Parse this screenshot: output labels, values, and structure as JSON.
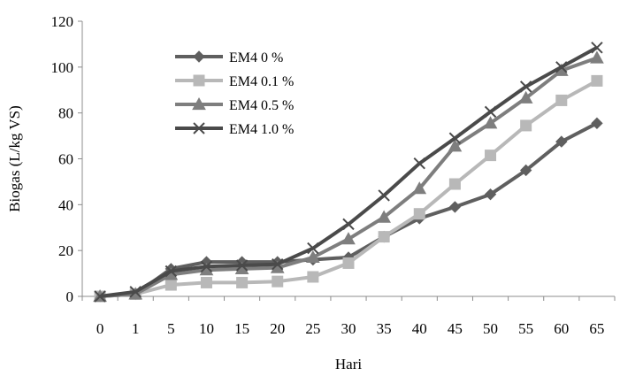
{
  "chart_data": {
    "type": "line",
    "xlabel": "Hari",
    "ylabel": "Biogas (L/kg VS)",
    "categories": [
      "0",
      "1",
      "5",
      "10",
      "15",
      "20",
      "25",
      "30",
      "35",
      "40",
      "45",
      "50",
      "55",
      "60",
      "65"
    ],
    "ylim": [
      0,
      120
    ],
    "yticks": [
      "0",
      "20",
      "40",
      "60",
      "80",
      "100",
      "120"
    ],
    "grid": false,
    "legend_position": "top-left",
    "series": [
      {
        "name": "EM4 0 %",
        "marker": "diamond",
        "color": "#5f5f5f",
        "values": [
          0,
          1,
          12,
          15,
          15,
          15,
          16,
          17,
          26,
          34,
          39,
          44.5,
          55,
          67.5,
          75.5
        ]
      },
      {
        "name": "EM4 0.1 %",
        "marker": "square",
        "color": "#b8b8b8",
        "values": [
          0,
          1,
          5,
          6,
          6,
          6.5,
          8.5,
          14.5,
          26,
          36,
          49,
          61.5,
          74.5,
          85.5,
          94
        ]
      },
      {
        "name": "EM4 0.5 %",
        "marker": "triangle",
        "color": "#7e7e7e",
        "values": [
          0,
          1,
          9.5,
          11.5,
          12,
          12.5,
          17,
          25,
          34.5,
          47,
          65.5,
          75.5,
          86.5,
          98.5,
          104
        ]
      },
      {
        "name": "EM4 1.0 %",
        "marker": "x",
        "color": "#4a4a4a",
        "values": [
          0,
          2,
          11,
          13,
          13.5,
          14,
          21,
          31.5,
          44,
          58,
          69,
          80.5,
          91.5,
          100,
          108.5
        ]
      }
    ]
  }
}
